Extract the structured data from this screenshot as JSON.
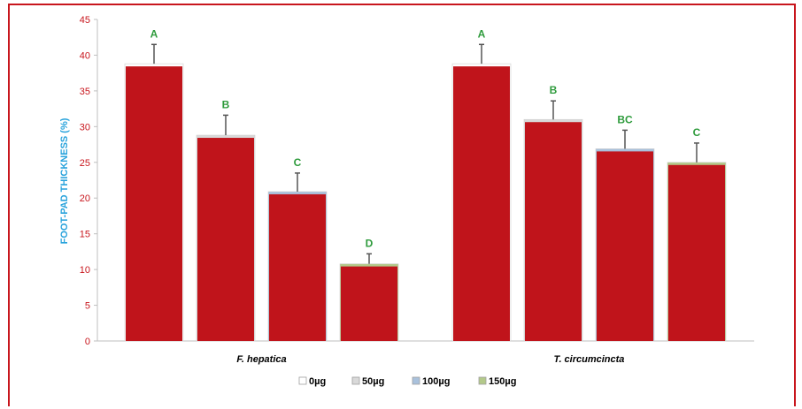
{
  "chart_data": {
    "type": "bar",
    "ylabel": "FOOT-PAD THICKNESS (%)",
    "ylim": [
      0,
      45
    ],
    "yticks": [
      0,
      5,
      10,
      15,
      20,
      25,
      30,
      35,
      40,
      45
    ],
    "groups": [
      {
        "name": "F. hepatica",
        "bars": [
          {
            "series": "0µg",
            "value": 38.8,
            "error": 2.7,
            "letter": "A"
          },
          {
            "series": "50µg",
            "value": 28.8,
            "error": 2.8,
            "letter": "B"
          },
          {
            "series": "100µg",
            "value": 20.9,
            "error": 2.6,
            "letter": "C"
          },
          {
            "series": "150µg",
            "value": 10.8,
            "error": 1.4,
            "letter": "D"
          }
        ]
      },
      {
        "name": "T. circumcincta",
        "bars": [
          {
            "series": "0µg",
            "value": 38.8,
            "error": 2.7,
            "letter": "A"
          },
          {
            "series": "50µg",
            "value": 31.0,
            "error": 2.6,
            "letter": "B"
          },
          {
            "series": "100µg",
            "value": 26.9,
            "error": 2.6,
            "letter": "BC"
          },
          {
            "series": "150µg",
            "value": 25.0,
            "error": 2.7,
            "letter": "C"
          }
        ]
      }
    ],
    "legend": [
      {
        "name": "0µg",
        "color": "#ffffff"
      },
      {
        "name": "50µg",
        "color": "#d9d9d9"
      },
      {
        "name": "100µg",
        "color": "#a9c1dc"
      },
      {
        "name": "150µg",
        "color": "#b3c98a"
      }
    ],
    "legend_position": "bottom",
    "colors": {
      "bar_fill": "#c0141b",
      "axis_tick_text": "#c8161d",
      "ylabel_text": "#29a3dc",
      "letter_text": "#2e9b3c",
      "error_bar": "#555555",
      "frame": "#c8161d"
    }
  }
}
